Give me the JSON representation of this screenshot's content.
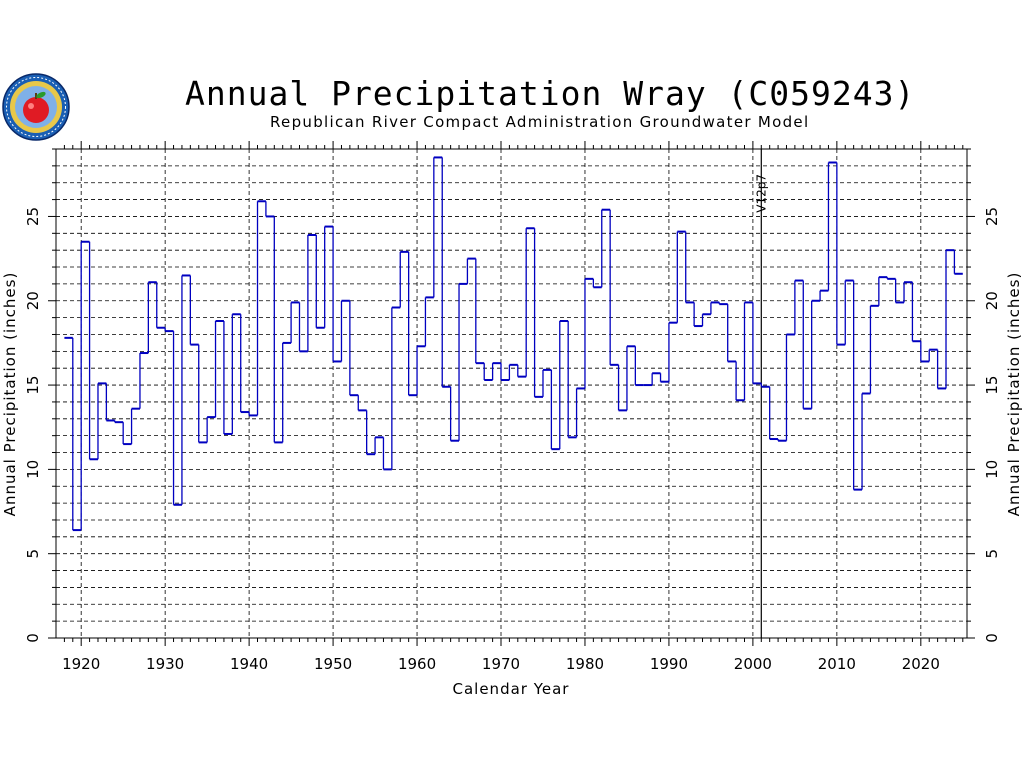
{
  "chart_data": {
    "type": "line",
    "step": true,
    "title": "Annual Precipitation Wray (C059243)",
    "subtitle": "Republican River Compact Administration Groundwater Model",
    "xlabel": "Calendar Year",
    "ylabel_left": "Annual Precipitation (inches)",
    "ylabel_right": "Annual Precipitation (inches)",
    "xlim": [
      1917,
      2025.5
    ],
    "ylim": [
      0,
      29
    ],
    "x_ticks": [
      1920,
      1930,
      1940,
      1950,
      1960,
      1970,
      1980,
      1990,
      2000,
      2010,
      2020
    ],
    "y_ticks": [
      0,
      5,
      10,
      15,
      20,
      25
    ],
    "grid": true,
    "line_color": "#0000c0",
    "marker_line": {
      "x": 2001,
      "label": "V12p7"
    },
    "years": [
      1918,
      1919,
      1920,
      1921,
      1922,
      1923,
      1924,
      1925,
      1926,
      1927,
      1928,
      1929,
      1930,
      1931,
      1932,
      1933,
      1934,
      1935,
      1936,
      1937,
      1938,
      1939,
      1940,
      1941,
      1942,
      1943,
      1944,
      1945,
      1946,
      1947,
      1948,
      1949,
      1950,
      1951,
      1952,
      1953,
      1954,
      1955,
      1956,
      1957,
      1958,
      1959,
      1960,
      1961,
      1962,
      1963,
      1964,
      1965,
      1966,
      1967,
      1968,
      1969,
      1970,
      1971,
      1972,
      1973,
      1974,
      1975,
      1976,
      1977,
      1978,
      1979,
      1980,
      1981,
      1982,
      1983,
      1984,
      1985,
      1986,
      1987,
      1988,
      1989,
      1990,
      1991,
      1992,
      1993,
      1994,
      1995,
      1996,
      1997,
      1998,
      1999,
      2000,
      2001,
      2002,
      2003,
      2004,
      2005,
      2006,
      2007,
      2008,
      2009,
      2010,
      2011,
      2012,
      2013,
      2014,
      2015,
      2016,
      2017,
      2018,
      2019,
      2020,
      2021,
      2022,
      2023,
      2024
    ],
    "values": [
      17.8,
      6.4,
      23.5,
      10.6,
      15.1,
      12.9,
      12.8,
      11.5,
      13.6,
      16.9,
      21.1,
      18.4,
      18.2,
      7.9,
      21.5,
      17.4,
      11.6,
      13.1,
      18.8,
      12.1,
      19.2,
      13.4,
      13.2,
      25.9,
      25.0,
      11.6,
      17.5,
      19.9,
      17.0,
      23.9,
      18.4,
      24.4,
      16.4,
      20.0,
      14.4,
      13.5,
      10.9,
      11.9,
      10.0,
      19.6,
      22.9,
      14.4,
      17.3,
      20.2,
      28.5,
      14.9,
      11.7,
      21.0,
      22.5,
      16.3,
      15.3,
      16.3,
      15.3,
      16.2,
      15.5,
      24.3,
      14.3,
      15.9,
      11.2,
      18.8,
      11.9,
      14.8,
      21.3,
      20.8,
      25.4,
      16.2,
      13.5,
      17.3,
      15.0,
      15.0,
      15.7,
      15.2,
      18.7,
      24.1,
      19.9,
      18.5,
      19.2,
      19.9,
      19.8,
      16.4,
      14.1,
      19.9,
      15.1,
      14.9,
      11.8,
      11.7,
      18.0,
      21.2,
      13.6,
      20.0,
      20.6,
      28.2,
      17.4,
      21.2,
      8.8,
      14.5,
      19.7,
      21.4,
      21.3,
      19.9,
      21.1,
      17.6,
      16.4,
      17.1,
      14.8,
      23.0,
      21.6
    ]
  }
}
